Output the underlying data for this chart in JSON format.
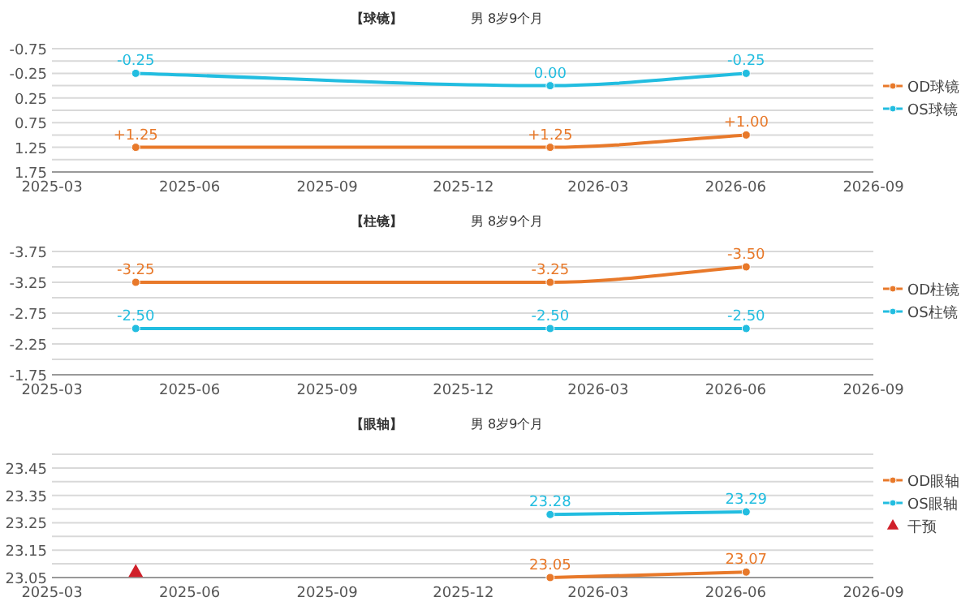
{
  "chart_data": [
    {
      "type": "line",
      "title": "【球镜】",
      "subtitle": "男   8岁9个月",
      "xlim": [
        "2025-03",
        "2026-09"
      ],
      "xticks": [
        "2025-03",
        "2025-06",
        "2025-09",
        "2025-12",
        "2026-03",
        "2026-06",
        "2026-09"
      ],
      "ylim": [
        1.75,
        -0.75
      ],
      "yticks": [
        {
          "value": -0.75,
          "label": "-0.75"
        },
        {
          "value": -0.5,
          "label": null
        },
        {
          "value": -0.25,
          "label": "-0.25"
        },
        {
          "value": 0,
          "label": null
        },
        {
          "value": 0.25,
          "label": "0.25"
        },
        {
          "value": 0.5,
          "label": null
        },
        {
          "value": 0.75,
          "label": "0.75"
        },
        {
          "value": 1,
          "label": null
        },
        {
          "value": 1.25,
          "label": "1.25"
        },
        {
          "value": 1.5,
          "label": null
        },
        {
          "value": 1.75,
          "label": "1.75"
        }
      ],
      "grid": "y",
      "legend": "right",
      "marker": "circle",
      "data_labels": true,
      "series": [
        {
          "name": "OD球镜",
          "color": "#e8792a",
          "x": [
            "2025-04-26",
            "2026-01-28",
            "2026-06-08"
          ],
          "values": [
            1.25,
            1.25,
            1.0
          ],
          "value_labels": [
            "+1.25",
            "+1.25",
            "+1.00"
          ]
        },
        {
          "name": "OS球镜",
          "color": "#22bde0",
          "x": [
            "2025-04-26",
            "2026-01-28",
            "2026-06-08"
          ],
          "values": [
            -0.25,
            0.0,
            -0.25
          ],
          "value_labels": [
            "-0.25",
            "0.00",
            "-0.25"
          ]
        }
      ]
    },
    {
      "type": "line",
      "title": "【柱镜】",
      "subtitle": "男   8岁9个月",
      "xlim": [
        "2025-03",
        "2026-09"
      ],
      "xticks": [
        "2025-03",
        "2025-06",
        "2025-09",
        "2025-12",
        "2026-03",
        "2026-06",
        "2026-09"
      ],
      "ylim": [
        -1.75,
        -3.75
      ],
      "yticks": [
        {
          "value": -3.75,
          "label": "-3.75"
        },
        {
          "value": -3.5,
          "label": null
        },
        {
          "value": -3.25,
          "label": "-3.25"
        },
        {
          "value": -3.0,
          "label": null
        },
        {
          "value": -2.75,
          "label": "-2.75"
        },
        {
          "value": -2.5,
          "label": null
        },
        {
          "value": -2.25,
          "label": "-2.25"
        },
        {
          "value": -2.0,
          "label": null
        },
        {
          "value": -1.75,
          "label": "-1.75"
        }
      ],
      "grid": "y",
      "legend": "right",
      "marker": "circle",
      "data_labels": true,
      "series": [
        {
          "name": "OD柱镜",
          "color": "#e8792a",
          "x": [
            "2025-04-26",
            "2026-01-28",
            "2026-06-08"
          ],
          "values": [
            -3.25,
            -3.25,
            -3.5
          ],
          "value_labels": [
            "-3.25",
            "-3.25",
            "-3.50"
          ]
        },
        {
          "name": "OS柱镜",
          "color": "#22bde0",
          "x": [
            "2025-04-26",
            "2026-01-28",
            "2026-06-08"
          ],
          "values": [
            -2.5,
            -2.5,
            -2.5
          ],
          "value_labels": [
            "-2.50",
            "-2.50",
            "-2.50"
          ]
        }
      ]
    },
    {
      "type": "line",
      "title": "【眼轴】",
      "subtitle": "男   8岁9个月",
      "xlim": [
        "2025-03",
        "2026-09"
      ],
      "xticks": [
        "2025-03",
        "2025-06",
        "2025-09",
        "2025-12",
        "2026-03",
        "2026-06",
        "2026-09"
      ],
      "ylim": [
        23.05,
        23.5
      ],
      "yticks": [
        {
          "value": 23.05,
          "label": "23.05"
        },
        {
          "value": 23.1,
          "label": null
        },
        {
          "value": 23.15,
          "label": "23.15"
        },
        {
          "value": 23.2,
          "label": null
        },
        {
          "value": 23.25,
          "label": "23.25"
        },
        {
          "value": 23.3,
          "label": null
        },
        {
          "value": 23.35,
          "label": "23.35"
        },
        {
          "value": 23.4,
          "label": null
        },
        {
          "value": 23.45,
          "label": "23.45"
        },
        {
          "value": 23.5,
          "label": null
        }
      ],
      "grid": "y",
      "legend": "right",
      "marker": "circle",
      "data_labels": true,
      "series": [
        {
          "name": "OD眼轴",
          "color": "#e8792a",
          "x": [
            "2026-01-28",
            "2026-06-08"
          ],
          "values": [
            23.05,
            23.07
          ],
          "value_labels": [
            "23.05",
            "23.07"
          ]
        },
        {
          "name": "OS眼轴",
          "color": "#22bde0",
          "x": [
            "2026-01-28",
            "2026-06-08"
          ],
          "values": [
            23.28,
            23.29
          ],
          "value_labels": [
            "23.28",
            "23.29"
          ]
        },
        {
          "name": "干预",
          "type": "scatter",
          "marker": "triangle",
          "color": "#d0202a",
          "x": [
            "2025-04-26"
          ],
          "values": [
            23.07
          ],
          "value_labels": [
            null
          ]
        }
      ]
    }
  ]
}
